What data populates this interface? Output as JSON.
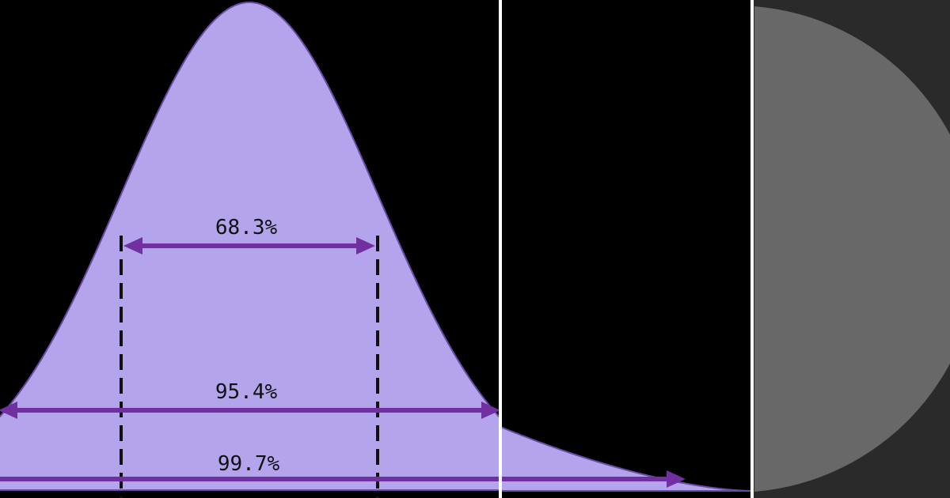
{
  "colors": {
    "background": "#000000",
    "curve_fill": "#b4a4ec",
    "curve_stroke": "#6a4ca8",
    "arrow": "#7030a0",
    "dashed_line": "#111111",
    "divider": "#ffffff",
    "side_panel": "#2a2a2a",
    "side_circle": "#686868"
  },
  "diagram": {
    "labels": {
      "one_sigma": "68.3%",
      "two_sigma": "95.4%",
      "three_sigma": "99.7%"
    }
  }
}
